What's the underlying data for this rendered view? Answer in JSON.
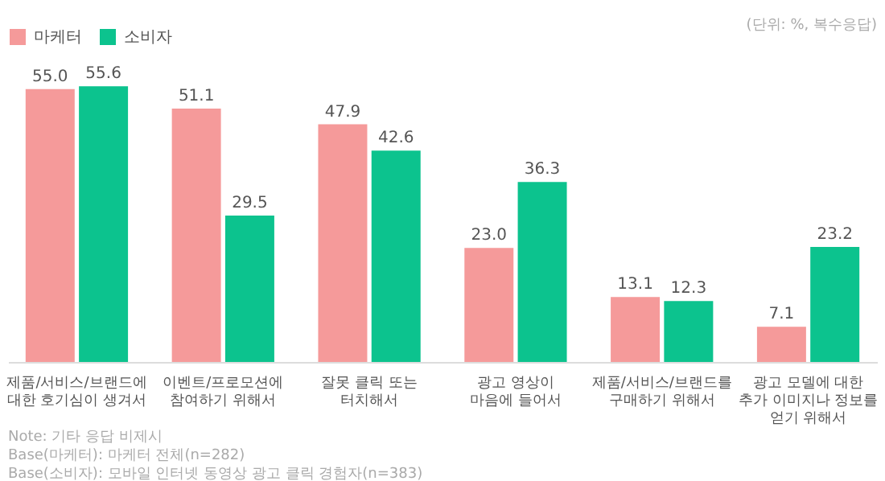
{
  "chart_data": {
    "type": "bar",
    "categories": [
      "제품/서비스/브랜드에\n대한 호기심이 생겨서",
      "이벤트/프로모션에\n참여하기 위해서",
      "잘못 클릭 또는\n터치해서",
      "광고 영상이\n마음에 들어서",
      "제품/서비스/브랜드를\n구매하기 위해서",
      "광고 모델에 대한\n추가 이미지나 정보를\n얻기 위해서"
    ],
    "series": [
      {
        "name": "마케터",
        "color": "#f59a9a",
        "values": [
          55.0,
          51.1,
          47.9,
          23.0,
          13.1,
          7.1
        ],
        "value_labels": [
          "55.0",
          "51.1",
          "47.9",
          "23.0",
          "13.1",
          "7.1"
        ]
      },
      {
        "name": "소비자",
        "color": "#0cc38e",
        "values": [
          55.6,
          29.5,
          42.6,
          36.3,
          12.3,
          23.2
        ],
        "value_labels": [
          "55.6",
          "29.5",
          "42.6",
          "36.3",
          "12.3",
          "23.2"
        ]
      }
    ],
    "grid": false,
    "legend": "top",
    "annotations": [
      "(단위: %, 복수응답)",
      "Note: 기타 응답 비제시",
      "Base(마케터): 마케터 전체(n=282)",
      "Base(소비자): 모바일 인터넷 동영상 광고 클릭 경험자(n=383)"
    ]
  }
}
